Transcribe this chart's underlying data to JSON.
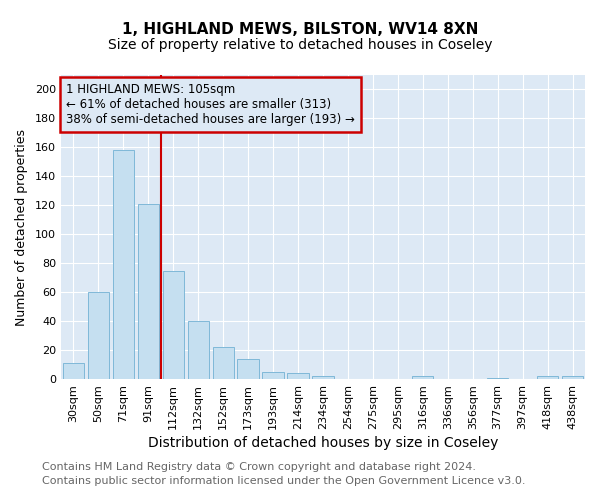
{
  "title_line1": "1, HIGHLAND MEWS, BILSTON, WV14 8XN",
  "title_line2": "Size of property relative to detached houses in Coseley",
  "xlabel": "Distribution of detached houses by size in Coseley",
  "ylabel": "Number of detached properties",
  "categories": [
    "30sqm",
    "50sqm",
    "71sqm",
    "91sqm",
    "112sqm",
    "132sqm",
    "152sqm",
    "173sqm",
    "193sqm",
    "214sqm",
    "234sqm",
    "254sqm",
    "275sqm",
    "295sqm",
    "316sqm",
    "336sqm",
    "356sqm",
    "377sqm",
    "397sqm",
    "418sqm",
    "438sqm"
  ],
  "values": [
    11,
    60,
    158,
    121,
    75,
    40,
    22,
    14,
    5,
    4,
    2,
    0,
    0,
    0,
    2,
    0,
    0,
    1,
    0,
    2,
    2
  ],
  "bar_color": "#C5DFF0",
  "bar_edge_color": "#7FB8D8",
  "red_line_x": 3.5,
  "red_line_color": "#CC0000",
  "annotation_box_text": "1 HIGHLAND MEWS: 105sqm\n← 61% of detached houses are smaller (313)\n38% of semi-detached houses are larger (193) →",
  "annotation_box_color": "#CC0000",
  "annotation_text_color": "#000000",
  "ylim": [
    0,
    210
  ],
  "yticks": [
    0,
    20,
    40,
    60,
    80,
    100,
    120,
    140,
    160,
    180,
    200
  ],
  "axes_background_color": "#DDE9F5",
  "figure_background_color": "#FFFFFF",
  "footer_line1": "Contains HM Land Registry data © Crown copyright and database right 2024.",
  "footer_line2": "Contains public sector information licensed under the Open Government Licence v3.0.",
  "grid_color": "#FFFFFF",
  "title_fontsize": 11,
  "subtitle_fontsize": 10,
  "xlabel_fontsize": 10,
  "ylabel_fontsize": 9,
  "tick_fontsize": 8,
  "footer_fontsize": 8,
  "ann_fontsize": 8.5
}
